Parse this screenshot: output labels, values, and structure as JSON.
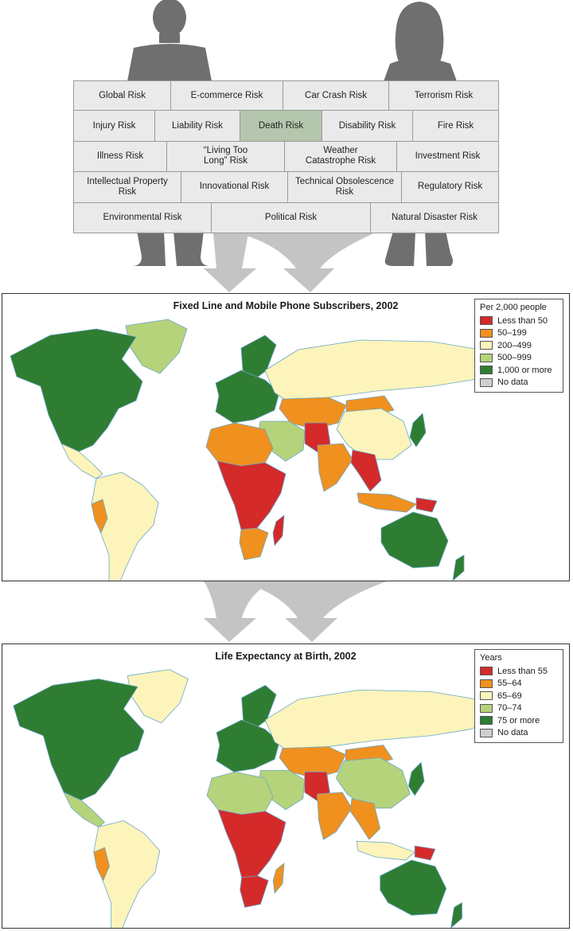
{
  "risks": {
    "rows": [
      [
        {
          "label": "Global Risk"
        },
        {
          "label": "E-commerce Risk"
        },
        {
          "label": "Car Crash Risk"
        },
        {
          "label": "Terrorism Risk"
        }
      ],
      [
        {
          "label": "Injury Risk"
        },
        {
          "label": "Liability Risk"
        },
        {
          "label": "Death Risk",
          "highlighted": true
        },
        {
          "label": "Disability Risk"
        },
        {
          "label": "Fire Risk"
        }
      ],
      [
        {
          "label": "Illness Risk"
        },
        {
          "label": "“Living Too\nLong” Risk"
        },
        {
          "label": "Weather\nCatastrophe Risk"
        },
        {
          "label": "Investment Risk"
        }
      ],
      [
        {
          "label": "Intellectual Property\nRisk"
        },
        {
          "label": "Innovational Risk"
        },
        {
          "label": "Technical Obsolescence\nRisk"
        },
        {
          "label": "Regulatory Risk"
        }
      ],
      [
        {
          "label": "Environmental Risk"
        },
        {
          "label": "Political Risk"
        },
        {
          "label": "Natural Disaster Risk"
        }
      ]
    ]
  },
  "maps": [
    {
      "title": "Fixed Line and Mobile Phone Subscribers, 2002",
      "legend_title": "Per 2,000 people",
      "legend": [
        {
          "label": "Less than 50",
          "color": "#d42a2a"
        },
        {
          "label": "50–199",
          "color": "#f0901f"
        },
        {
          "label": "200–499",
          "color": "#fdf4bb"
        },
        {
          "label": "500–999",
          "color": "#b5d37a"
        },
        {
          "label": "1,000 or more",
          "color": "#2f7d32"
        },
        {
          "label": "No data",
          "color": "#cfcfcf"
        }
      ],
      "regions": {
        "north_america": "#2f7d32",
        "greenland": "#b5d37a",
        "central_america": "#fdf4bb",
        "south_america": "#fdf4bb",
        "europe": "#2f7d32",
        "scandinavia": "#2f7d32",
        "russia": "#fdf4bb",
        "middle_east": "#b5d37a",
        "central_asia": "#f0901f",
        "china": "#fdf4bb",
        "mongolia": "#f0901f",
        "india": "#f0901f",
        "pakistan": "#d42a2a",
        "southeast_asia": "#d42a2a",
        "indonesia": "#f0901f",
        "japan": "#2f7d32",
        "north_africa": "#f0901f",
        "sub_saharan_africa": "#d42a2a",
        "southern_africa": "#f0901f",
        "madagascar": "#d42a2a",
        "australia": "#2f7d32",
        "new_zealand": "#2f7d32",
        "peru": "#f0901f",
        "png": "#d42a2a"
      }
    },
    {
      "title": "Life Expectancy at Birth, 2002",
      "legend_title": "Years",
      "legend": [
        {
          "label": "Less than 55",
          "color": "#d42a2a"
        },
        {
          "label": "55–64",
          "color": "#f0901f"
        },
        {
          "label": "65–69",
          "color": "#fdf4bb"
        },
        {
          "label": "70–74",
          "color": "#b5d37a"
        },
        {
          "label": "75 or more",
          "color": "#2f7d32"
        },
        {
          "label": "No data",
          "color": "#cfcfcf"
        }
      ],
      "regions": {
        "north_america": "#2f7d32",
        "greenland": "#fdf4bb",
        "central_america": "#b5d37a",
        "south_america": "#fdf4bb",
        "europe": "#2f7d32",
        "scandinavia": "#2f7d32",
        "russia": "#fdf4bb",
        "middle_east": "#b5d37a",
        "central_asia": "#f0901f",
        "china": "#b5d37a",
        "mongolia": "#f0901f",
        "india": "#f0901f",
        "pakistan": "#d42a2a",
        "southeast_asia": "#f0901f",
        "indonesia": "#fdf4bb",
        "japan": "#2f7d32",
        "north_africa": "#b5d37a",
        "sub_saharan_africa": "#d42a2a",
        "southern_africa": "#d42a2a",
        "madagascar": "#f0901f",
        "australia": "#2f7d32",
        "new_zealand": "#2f7d32",
        "peru": "#f0901f",
        "png": "#d42a2a"
      }
    }
  ]
}
